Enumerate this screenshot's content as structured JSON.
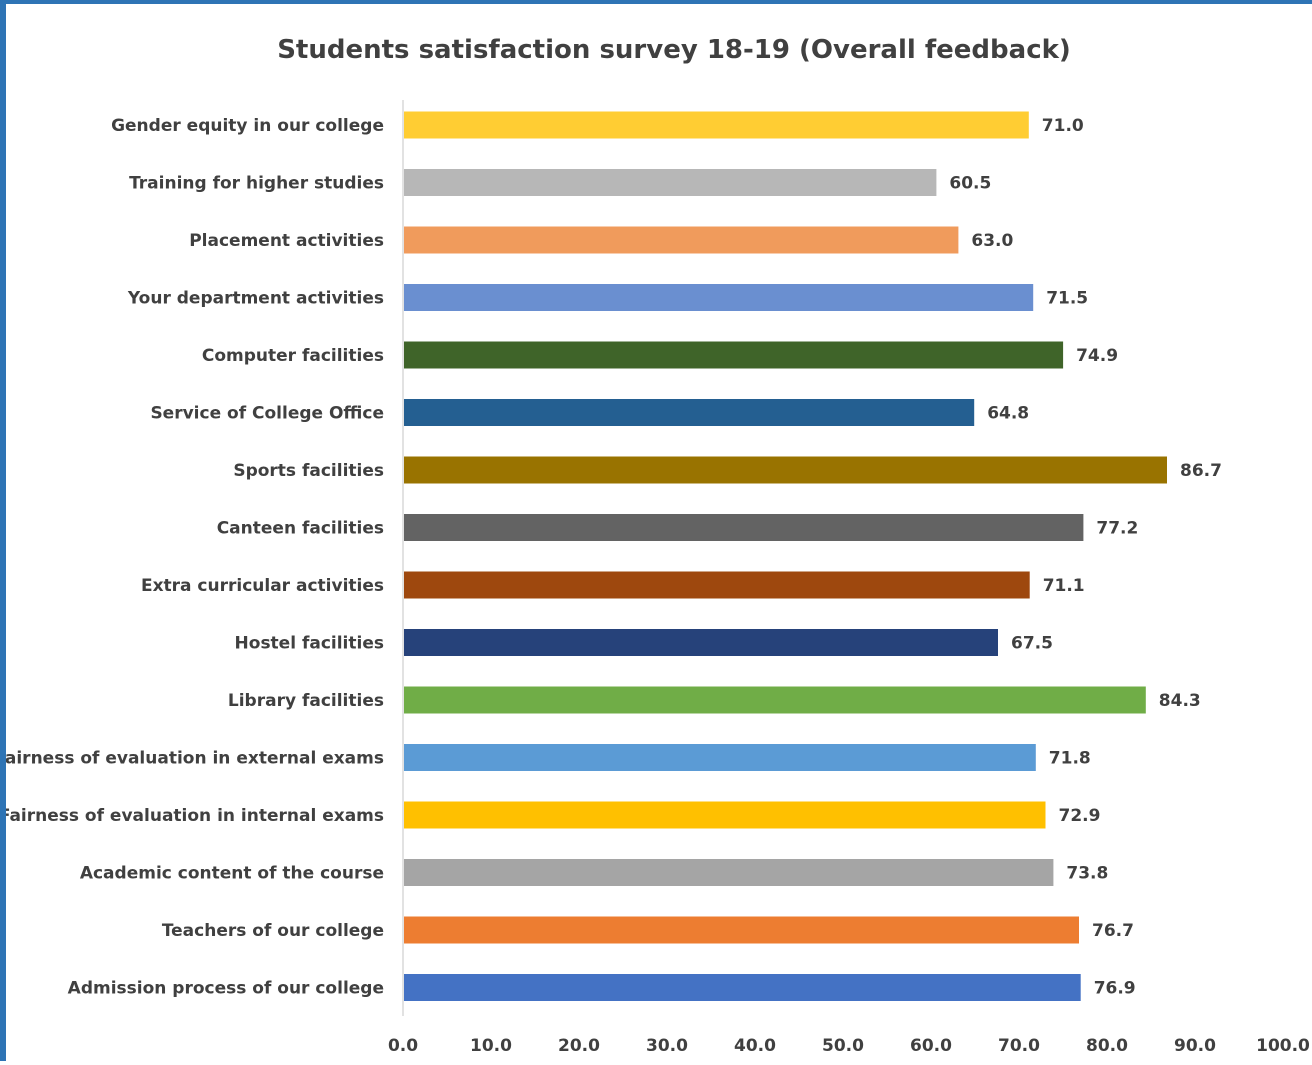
{
  "chart_data": {
    "type": "bar",
    "orientation": "horizontal",
    "title": "Students satisfaction survey 18-19 (Overall feedback)",
    "xlabel": "",
    "ylabel": "",
    "xlim": [
      0,
      100
    ],
    "x_ticks": [
      "0.0",
      "10.0",
      "20.0",
      "30.0",
      "40.0",
      "50.0",
      "60.0",
      "70.0",
      "80.0",
      "90.0",
      "100.0"
    ],
    "grid": false,
    "legend": "none",
    "categories": [
      "Gender equity in our college",
      "Training for higher studies",
      "Placement activities",
      "Your department activities",
      "Computer facilities",
      "Service of College Office",
      "Sports facilities",
      "Canteen facilities",
      "Extra curricular activities",
      "Hostel facilities",
      "Library facilities",
      "Fairness of evaluation in external exams",
      "Fairness of evaluation in internal exams",
      "Academic content of the course",
      "Teachers of our college",
      "Admission process of our college"
    ],
    "values": [
      71.0,
      60.5,
      63.0,
      71.5,
      74.9,
      64.8,
      86.7,
      77.2,
      71.1,
      67.5,
      84.3,
      71.8,
      72.9,
      73.8,
      76.7,
      76.9
    ],
    "value_labels": [
      "71.0",
      "60.5",
      "63.0",
      "71.5",
      "74.9",
      "64.8",
      "86.7",
      "77.2",
      "71.1",
      "67.5",
      "84.3",
      "71.8",
      "72.9",
      "73.8",
      "76.7",
      "76.9"
    ],
    "colors": [
      "#ffcd33",
      "#b7b7b7",
      "#f09b5c",
      "#6a8fd0",
      "#3f6429",
      "#245f91",
      "#997300",
      "#636363",
      "#9e480e",
      "#26427a",
      "#70ad47",
      "#5b9bd5",
      "#ffc000",
      "#a5a5a5",
      "#ed7d31",
      "#4472c4"
    ]
  }
}
